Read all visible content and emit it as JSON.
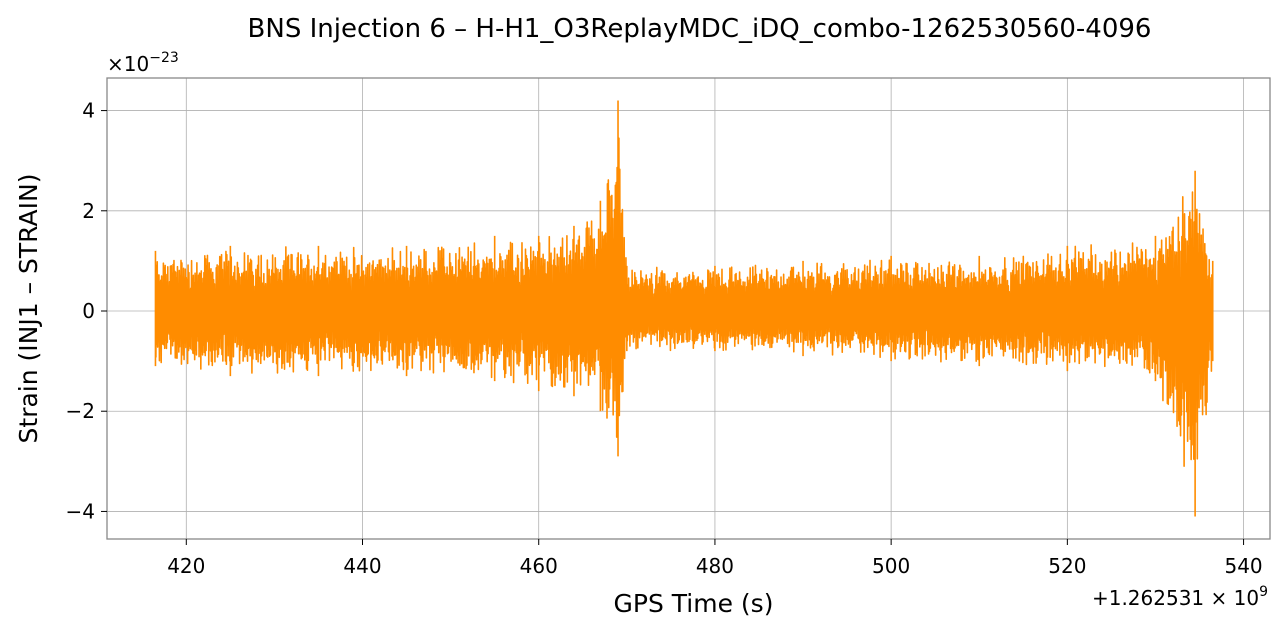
{
  "chart_data": {
    "type": "line",
    "title": "BNS Injection 6 – H-H1_O3ReplayMDC_iDQ_combo-1262530560-4096",
    "xlabel": "GPS Time (s)",
    "ylabel": "Strain (INJ1 – STRAIN)",
    "xlim": [
      411,
      543
    ],
    "ylim": [
      -4.55,
      4.65
    ],
    "x_ticks": [
      420,
      440,
      460,
      480,
      500,
      520,
      540
    ],
    "y_ticks": [
      -4,
      -2,
      0,
      2,
      4
    ],
    "y_tick_labels": [
      "−4",
      "−2",
      "0",
      "2",
      "4"
    ],
    "y_scale_label": {
      "base": "×10",
      "exponent": "−23"
    },
    "x_offset_label": {
      "prefix": "+1.262531 × 10",
      "exponent": "9"
    },
    "grid": true,
    "series": [
      {
        "color": "#ff8c00",
        "x_range": [
          416.5,
          536.5
        ],
        "envelope": [
          {
            "x": 416.5,
            "upper": 1.2,
            "lower": -1.1
          },
          {
            "x": 425,
            "upper": 1.3,
            "lower": -1.3
          },
          {
            "x": 435,
            "upper": 1.3,
            "lower": -1.3
          },
          {
            "x": 445,
            "upper": 1.3,
            "lower": -1.3
          },
          {
            "x": 455,
            "upper": 1.5,
            "lower": -1.4
          },
          {
            "x": 460,
            "upper": 1.5,
            "lower": -1.6
          },
          {
            "x": 464,
            "upper": 1.7,
            "lower": -1.7
          },
          {
            "x": 467,
            "upper": 2.2,
            "lower": -2.0
          },
          {
            "x": 469,
            "upper": 4.2,
            "lower": -2.9
          },
          {
            "x": 470,
            "upper": 0.9,
            "lower": -0.8
          },
          {
            "x": 480,
            "upper": 0.9,
            "lower": -0.8
          },
          {
            "x": 490,
            "upper": 1.0,
            "lower": -0.9
          },
          {
            "x": 500,
            "upper": 1.1,
            "lower": -1.0
          },
          {
            "x": 510,
            "upper": 1.1,
            "lower": -1.1
          },
          {
            "x": 520,
            "upper": 1.3,
            "lower": -1.2
          },
          {
            "x": 530,
            "upper": 1.5,
            "lower": -1.4
          },
          {
            "x": 534.5,
            "upper": 2.8,
            "lower": -4.1
          },
          {
            "x": 536.5,
            "upper": 1.0,
            "lower": -1.0
          }
        ]
      }
    ]
  }
}
